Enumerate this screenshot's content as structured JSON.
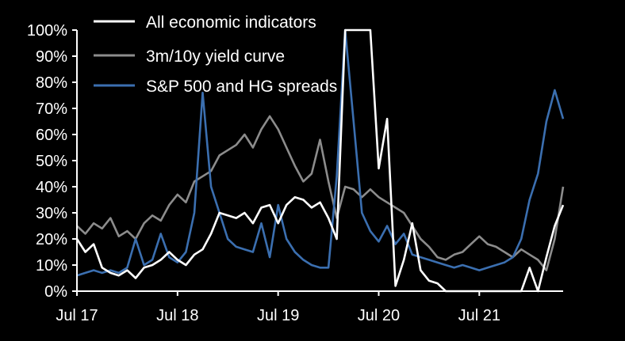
{
  "chart_data": {
    "type": "line",
    "title": "",
    "xlabel": "",
    "ylabel": "",
    "x_tick_labels": [
      "Jul 17",
      "Jul 18",
      "Jul 19",
      "Jul 20",
      "Jul 21"
    ],
    "y_tick_labels": [
      "0%",
      "10%",
      "20%",
      "30%",
      "40%",
      "50%",
      "60%",
      "70%",
      "80%",
      "90%",
      "100%"
    ],
    "ylim": [
      0,
      100
    ],
    "xlim": [
      "2017-07",
      "2022-04"
    ],
    "grid": false,
    "legend_position": "top-left",
    "colors": {
      "background": "#000000",
      "axis": "#ffffff"
    },
    "series": [
      {
        "name": "All economic indicators",
        "color": "#ffffff",
        "points": [
          [
            "2017-07",
            20
          ],
          [
            "2017-08",
            15
          ],
          [
            "2017-09",
            18
          ],
          [
            "2017-10",
            9
          ],
          [
            "2017-11",
            7
          ],
          [
            "2017-12",
            6
          ],
          [
            "2018-01",
            8
          ],
          [
            "2018-02",
            5
          ],
          [
            "2018-03",
            9
          ],
          [
            "2018-04",
            10
          ],
          [
            "2018-05",
            12
          ],
          [
            "2018-06",
            15
          ],
          [
            "2018-07",
            12
          ],
          [
            "2018-08",
            10
          ],
          [
            "2018-09",
            14
          ],
          [
            "2018-10",
            16
          ],
          [
            "2018-11",
            22
          ],
          [
            "2018-12",
            30
          ],
          [
            "2019-01",
            29
          ],
          [
            "2019-02",
            28
          ],
          [
            "2019-03",
            30
          ],
          [
            "2019-04",
            26
          ],
          [
            "2019-05",
            32
          ],
          [
            "2019-06",
            33
          ],
          [
            "2019-07",
            26
          ],
          [
            "2019-08",
            33
          ],
          [
            "2019-09",
            36
          ],
          [
            "2019-10",
            35
          ],
          [
            "2019-11",
            32
          ],
          [
            "2019-12",
            34
          ],
          [
            "2020-01",
            28
          ],
          [
            "2020-02",
            20
          ],
          [
            "2020-03",
            100
          ],
          [
            "2020-04",
            100
          ],
          [
            "2020-05",
            100
          ],
          [
            "2020-06",
            100
          ],
          [
            "2020-07",
            47
          ],
          [
            "2020-08",
            66
          ],
          [
            "2020-09",
            2
          ],
          [
            "2020-10",
            12
          ],
          [
            "2020-11",
            26
          ],
          [
            "2020-12",
            8
          ],
          [
            "2021-01",
            4
          ],
          [
            "2021-02",
            3
          ],
          [
            "2021-03",
            0
          ],
          [
            "2021-04",
            0
          ],
          [
            "2021-05",
            0
          ],
          [
            "2021-06",
            0
          ],
          [
            "2021-07",
            0
          ],
          [
            "2021-08",
            0
          ],
          [
            "2021-09",
            0
          ],
          [
            "2021-10",
            0
          ],
          [
            "2021-11",
            0
          ],
          [
            "2021-12",
            0
          ],
          [
            "2022-01",
            9
          ],
          [
            "2022-02",
            0
          ],
          [
            "2022-03",
            13
          ],
          [
            "2022-04",
            25
          ],
          [
            "2022-05",
            33
          ]
        ]
      },
      {
        "name": "3m/10y yield curve",
        "color": "#8c8c8c",
        "points": [
          [
            "2017-07",
            25
          ],
          [
            "2017-08",
            22
          ],
          [
            "2017-09",
            26
          ],
          [
            "2017-10",
            24
          ],
          [
            "2017-11",
            28
          ],
          [
            "2017-12",
            21
          ],
          [
            "2018-01",
            23
          ],
          [
            "2018-02",
            20
          ],
          [
            "2018-03",
            26
          ],
          [
            "2018-04",
            29
          ],
          [
            "2018-05",
            27
          ],
          [
            "2018-06",
            33
          ],
          [
            "2018-07",
            37
          ],
          [
            "2018-08",
            34
          ],
          [
            "2018-09",
            42
          ],
          [
            "2018-10",
            44
          ],
          [
            "2018-11",
            46
          ],
          [
            "2018-12",
            52
          ],
          [
            "2019-01",
            54
          ],
          [
            "2019-02",
            56
          ],
          [
            "2019-03",
            60
          ],
          [
            "2019-04",
            55
          ],
          [
            "2019-05",
            62
          ],
          [
            "2019-06",
            67
          ],
          [
            "2019-07",
            62
          ],
          [
            "2019-08",
            55
          ],
          [
            "2019-09",
            48
          ],
          [
            "2019-10",
            42
          ],
          [
            "2019-11",
            45
          ],
          [
            "2019-12",
            58
          ],
          [
            "2020-01",
            42
          ],
          [
            "2020-02",
            28
          ],
          [
            "2020-03",
            40
          ],
          [
            "2020-04",
            39
          ],
          [
            "2020-05",
            36
          ],
          [
            "2020-06",
            39
          ],
          [
            "2020-07",
            36
          ],
          [
            "2020-08",
            34
          ],
          [
            "2020-09",
            32
          ],
          [
            "2020-10",
            30
          ],
          [
            "2020-11",
            25
          ],
          [
            "2020-12",
            20
          ],
          [
            "2021-01",
            17
          ],
          [
            "2021-02",
            13
          ],
          [
            "2021-03",
            12
          ],
          [
            "2021-04",
            14
          ],
          [
            "2021-05",
            15
          ],
          [
            "2021-06",
            18
          ],
          [
            "2021-07",
            21
          ],
          [
            "2021-08",
            18
          ],
          [
            "2021-09",
            17
          ],
          [
            "2021-10",
            15
          ],
          [
            "2021-11",
            13
          ],
          [
            "2021-12",
            16
          ],
          [
            "2022-01",
            14
          ],
          [
            "2022-02",
            12
          ],
          [
            "2022-03",
            8
          ],
          [
            "2022-04",
            20
          ],
          [
            "2022-05",
            40
          ]
        ]
      },
      {
        "name": "S&P 500 and HG spreads",
        "color": "#3b6fb0",
        "points": [
          [
            "2017-07",
            6
          ],
          [
            "2017-08",
            7
          ],
          [
            "2017-09",
            8
          ],
          [
            "2017-10",
            7
          ],
          [
            "2017-11",
            8
          ],
          [
            "2017-12",
            7
          ],
          [
            "2018-01",
            9
          ],
          [
            "2018-02",
            20
          ],
          [
            "2018-03",
            10
          ],
          [
            "2018-04",
            12
          ],
          [
            "2018-05",
            22
          ],
          [
            "2018-06",
            13
          ],
          [
            "2018-07",
            11
          ],
          [
            "2018-08",
            15
          ],
          [
            "2018-09",
            30
          ],
          [
            "2018-10",
            76
          ],
          [
            "2018-11",
            40
          ],
          [
            "2018-12",
            30
          ],
          [
            "2019-01",
            20
          ],
          [
            "2019-02",
            17
          ],
          [
            "2019-03",
            16
          ],
          [
            "2019-04",
            15
          ],
          [
            "2019-05",
            26
          ],
          [
            "2019-06",
            13
          ],
          [
            "2019-07",
            33
          ],
          [
            "2019-08",
            20
          ],
          [
            "2019-09",
            15
          ],
          [
            "2019-10",
            12
          ],
          [
            "2019-11",
            10
          ],
          [
            "2019-12",
            9
          ],
          [
            "2020-01",
            9
          ],
          [
            "2020-02",
            44
          ],
          [
            "2020-03",
            100
          ],
          [
            "2020-04",
            65
          ],
          [
            "2020-05",
            30
          ],
          [
            "2020-06",
            23
          ],
          [
            "2020-07",
            19
          ],
          [
            "2020-08",
            25
          ],
          [
            "2020-09",
            18
          ],
          [
            "2020-10",
            22
          ],
          [
            "2020-11",
            14
          ],
          [
            "2020-12",
            13
          ],
          [
            "2021-01",
            12
          ],
          [
            "2021-02",
            11
          ],
          [
            "2021-03",
            10
          ],
          [
            "2021-04",
            9
          ],
          [
            "2021-05",
            10
          ],
          [
            "2021-06",
            9
          ],
          [
            "2021-07",
            8
          ],
          [
            "2021-08",
            9
          ],
          [
            "2021-09",
            10
          ],
          [
            "2021-10",
            11
          ],
          [
            "2021-11",
            13
          ],
          [
            "2021-12",
            20
          ],
          [
            "2022-01",
            35
          ],
          [
            "2022-02",
            45
          ],
          [
            "2022-03",
            65
          ],
          [
            "2022-04",
            77
          ],
          [
            "2022-05",
            66
          ]
        ]
      }
    ]
  }
}
